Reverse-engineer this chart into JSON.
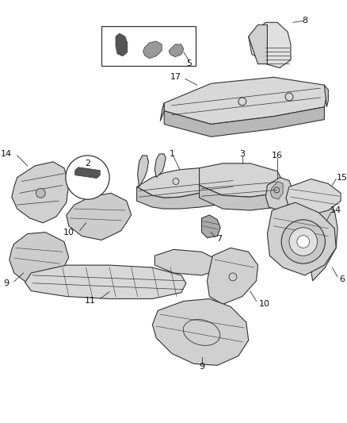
{
  "background_color": "#ffffff",
  "line_color": "#333333",
  "fill_light": "#e8e8e8",
  "fill_mid": "#cccccc",
  "fill_dark": "#aaaaaa",
  "fig_width": 4.38,
  "fig_height": 5.33,
  "dpi": 100
}
